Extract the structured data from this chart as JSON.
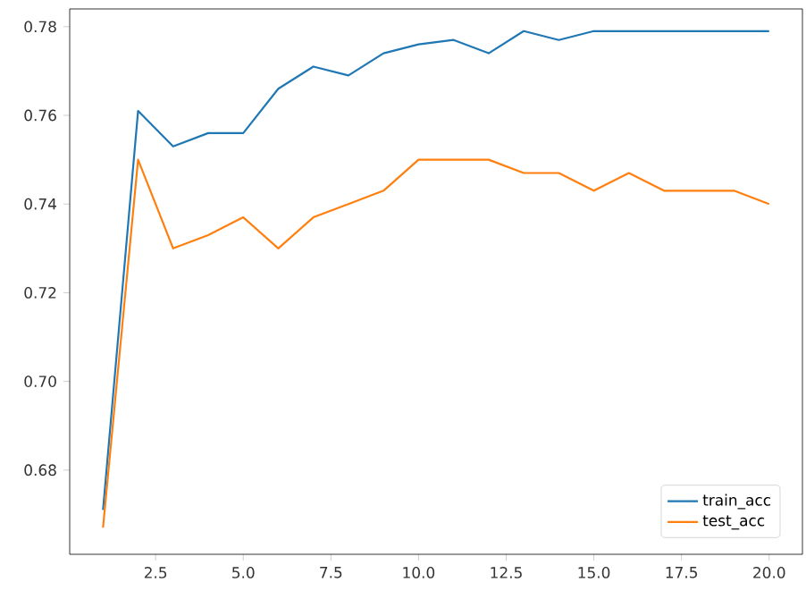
{
  "chart_data": {
    "type": "line",
    "x": [
      1,
      2,
      3,
      4,
      5,
      6,
      7,
      8,
      9,
      10,
      11,
      12,
      13,
      14,
      15,
      16,
      17,
      18,
      19,
      20
    ],
    "series": [
      {
        "name": "train_acc",
        "color": "#1f77b4",
        "values": [
          0.671,
          0.761,
          0.753,
          0.756,
          0.756,
          0.766,
          0.771,
          0.769,
          0.774,
          0.776,
          0.777,
          0.774,
          0.779,
          0.777,
          0.779,
          0.779,
          0.779,
          0.779,
          0.779,
          0.779
        ]
      },
      {
        "name": "test_acc",
        "color": "#ff7f0e",
        "values": [
          0.667,
          0.75,
          0.73,
          0.733,
          0.737,
          0.73,
          0.737,
          0.74,
          0.743,
          0.75,
          0.75,
          0.75,
          0.747,
          0.747,
          0.743,
          0.747,
          0.743,
          0.743,
          0.743,
          0.74
        ]
      }
    ],
    "xlim": [
      0.05,
      20.95
    ],
    "ylim": [
      0.661,
      0.784
    ],
    "xticks": [
      {
        "value": 2.5,
        "label": "2.5"
      },
      {
        "value": 5,
        "label": "5.0"
      },
      {
        "value": 7.5,
        "label": "7.5"
      },
      {
        "value": 10,
        "label": "10.0"
      },
      {
        "value": 12.5,
        "label": "12.5"
      },
      {
        "value": 15,
        "label": "15.0"
      },
      {
        "value": 17.5,
        "label": "17.5"
      },
      {
        "value": 20,
        "label": "20.0"
      }
    ],
    "yticks": [
      {
        "value": 0.68,
        "label": "0.68"
      },
      {
        "value": 0.7,
        "label": "0.70"
      },
      {
        "value": 0.72,
        "label": "0.72"
      },
      {
        "value": 0.74,
        "label": "0.74"
      },
      {
        "value": 0.76,
        "label": "0.76"
      },
      {
        "value": 0.78,
        "label": "0.78"
      }
    ],
    "legend": "bottom right",
    "grid": false,
    "line_style": "solid",
    "marker": "none"
  }
}
